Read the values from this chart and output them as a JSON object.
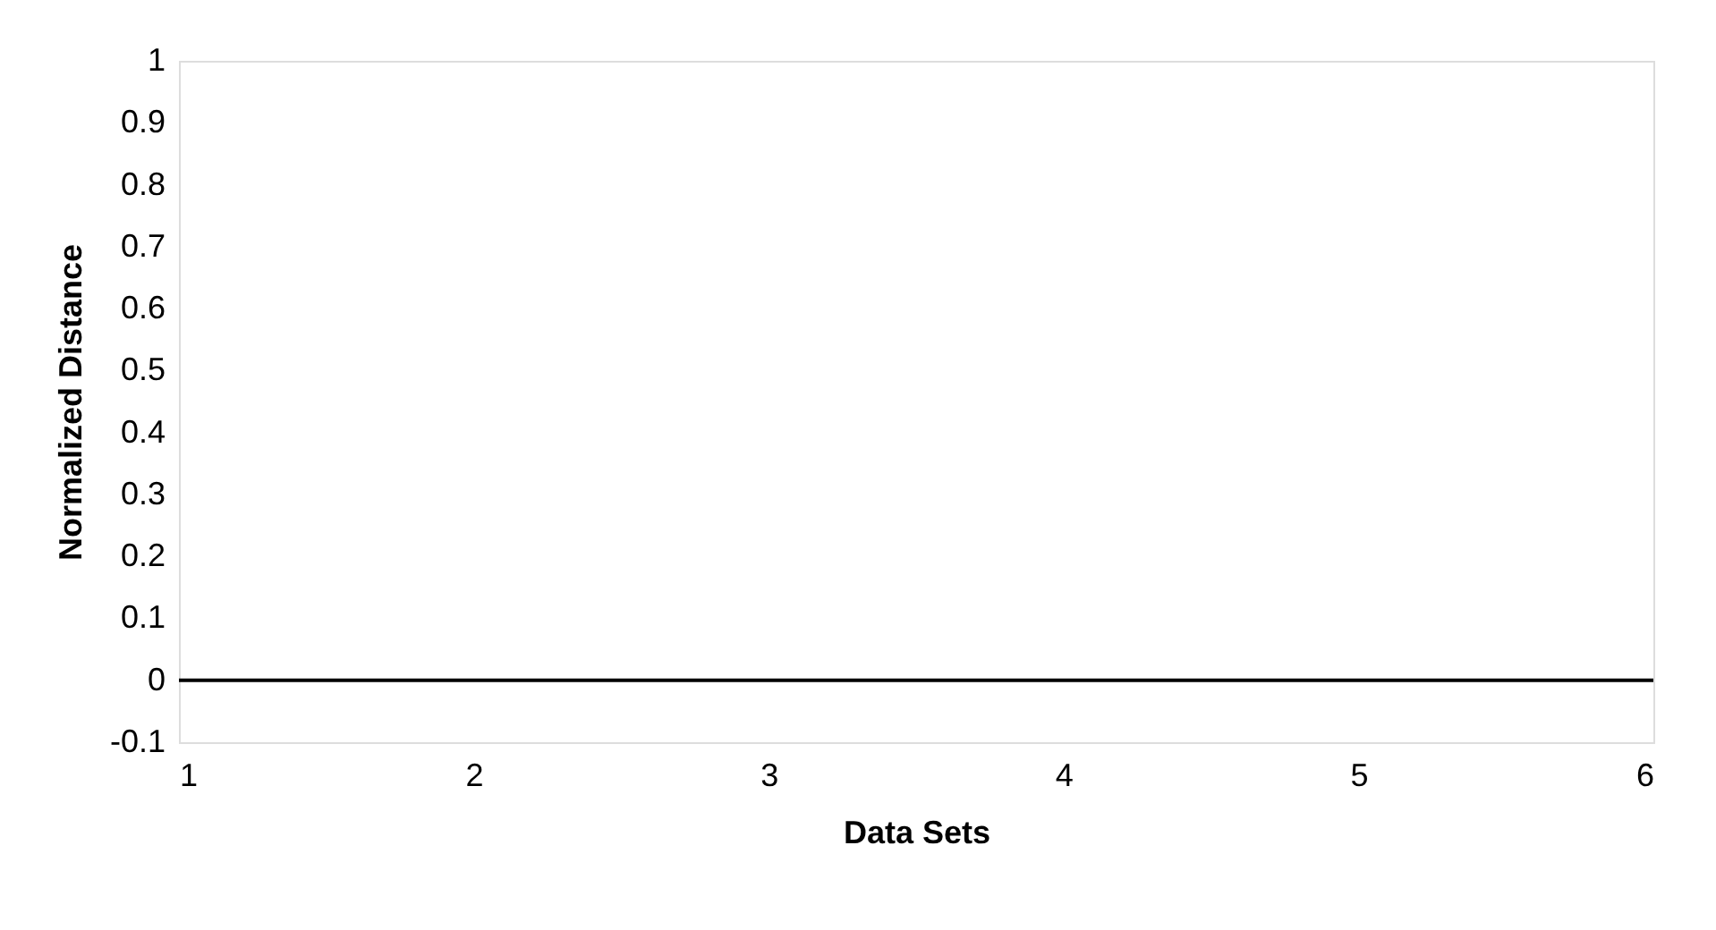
{
  "chart_data": {
    "type": "line",
    "xlabel": "Data Sets",
    "ylabel": "Normalized Distance",
    "x": [
      1,
      6
    ],
    "series": [
      {
        "color": "#000000",
        "values": [
          0,
          0
        ]
      }
    ],
    "xlim": [
      1,
      6
    ],
    "xticks": [
      1,
      2,
      3,
      4,
      5,
      6
    ],
    "ylim": [
      -0.1,
      1
    ],
    "yticks": [
      -0.1,
      0,
      0.1,
      0.2,
      0.3,
      0.4,
      0.5,
      0.6,
      0.7,
      0.8,
      0.9,
      1
    ],
    "grid": false,
    "legend": false,
    "marker": "none",
    "line_style": "solid"
  }
}
